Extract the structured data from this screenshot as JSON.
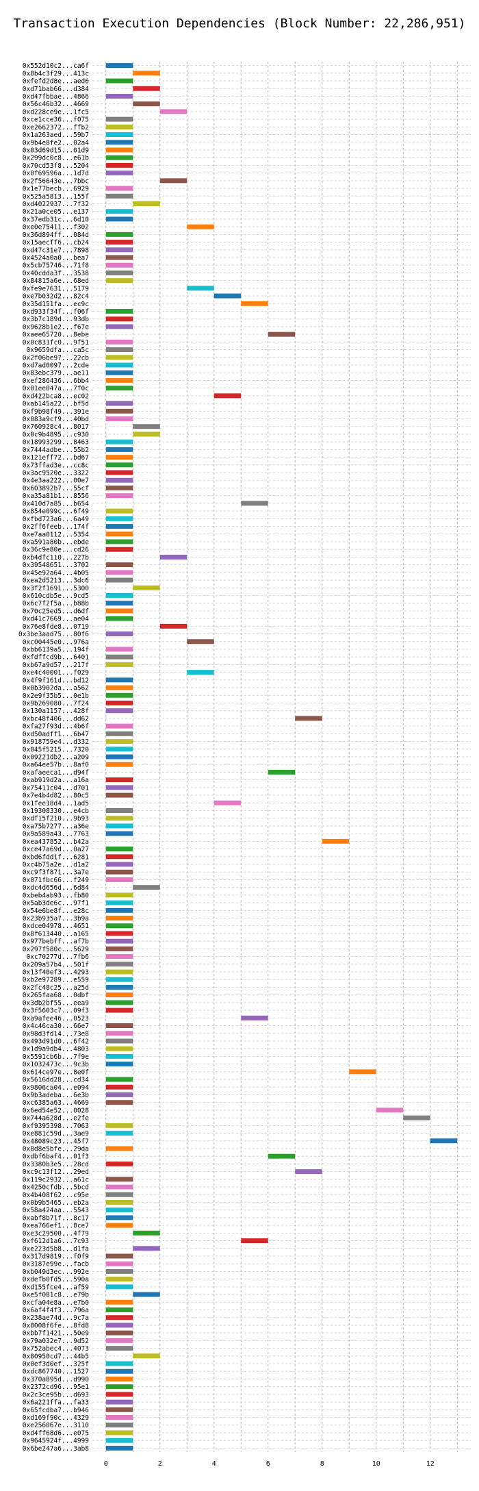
{
  "chart_data": {
    "type": "bar",
    "orientation": "horizontal-gantt",
    "title": "Transaction Execution Dependencies (Block Number: 22,286,951)",
    "xlabel": "",
    "ylabel": "",
    "xlim": [
      -0.5,
      13.5
    ],
    "xticks": [
      0,
      2,
      4,
      6,
      8,
      10,
      12
    ],
    "grid": true,
    "legend": "none",
    "colors": [
      "#1f77b4",
      "#ff7f0e",
      "#2ca02c",
      "#d62728",
      "#9467bd",
      "#8c564b",
      "#e377c2",
      "#7f7f7f",
      "#bcbd22",
      "#17becf"
    ],
    "transactions": [
      {
        "label": "0x552d10c2...ca6f",
        "start": 0
      },
      {
        "label": "0x8b4c3f29...413c",
        "start": 1
      },
      {
        "label": "0xfefd2d8e...aed6",
        "start": 0
      },
      {
        "label": "0xd71bab66...d384",
        "start": 1
      },
      {
        "label": "0xd47fbbae...4866",
        "start": 0
      },
      {
        "label": "0x56c46b32...4669",
        "start": 1
      },
      {
        "label": "0xd228ce9e...1fc5",
        "start": 2
      },
      {
        "label": "0xce1cce36...f075",
        "start": 0
      },
      {
        "label": "0xe2662372...ffb2",
        "start": 0
      },
      {
        "label": "0x1a263aed...59b7",
        "start": 0
      },
      {
        "label": "0x9b4e8fe2...02a4",
        "start": 0
      },
      {
        "label": "0x03d69d15...01d9",
        "start": 0
      },
      {
        "label": "0x299dc0c8...e61b",
        "start": 0
      },
      {
        "label": "0x70cd53f8...5204",
        "start": 0
      },
      {
        "label": "0x0f69596a...1d7d",
        "start": 0
      },
      {
        "label": "0x2f56643e...7bbc",
        "start": 2
      },
      {
        "label": "0x1e77becb...6929",
        "start": 0
      },
      {
        "label": "0x525a5813...155f",
        "start": 0
      },
      {
        "label": "0xd4022937...7f32",
        "start": 1
      },
      {
        "label": "0x21a0ce05...e137",
        "start": 0
      },
      {
        "label": "0x37edb31c...6d10",
        "start": 0
      },
      {
        "label": "0xe0e75411...f302",
        "start": 3
      },
      {
        "label": "0x36d894ff...084d",
        "start": 0
      },
      {
        "label": "0x15aecff6...cb24",
        "start": 0
      },
      {
        "label": "0xd47c31e7...7898",
        "start": 0
      },
      {
        "label": "0x4524a0a0...bea7",
        "start": 0
      },
      {
        "label": "0x5cb75746...71f8",
        "start": 0
      },
      {
        "label": "0x40cdda3f...3538",
        "start": 0
      },
      {
        "label": "0x84815a6e...68ed",
        "start": 0
      },
      {
        "label": "0xfe9e7631...5179",
        "start": 3
      },
      {
        "label": "0xe7b032d2...82c4",
        "start": 4
      },
      {
        "label": "0x35d151fa...ec9c",
        "start": 5
      },
      {
        "label": "0xd933f34f...f06f",
        "start": 0
      },
      {
        "label": "0x3b7c189d...93db",
        "start": 0
      },
      {
        "label": "0x9628b1e2...f67e",
        "start": 0
      },
      {
        "label": "0xaee65720...8ebe",
        "start": 6
      },
      {
        "label": "0x0c831fc0...9f51",
        "start": 0
      },
      {
        "label": "0x9659dfa...ca5c",
        "start": 0
      },
      {
        "label": "0x2f06be97...22cb",
        "start": 0
      },
      {
        "label": "0xd7ad0097...2cde",
        "start": 0
      },
      {
        "label": "0x83ebc379...ae11",
        "start": 0
      },
      {
        "label": "0xef286436...6bb4",
        "start": 0
      },
      {
        "label": "0x01ee047a...7f0c",
        "start": 0
      },
      {
        "label": "0xd422bca8...ec02",
        "start": 4
      },
      {
        "label": "0xab145a22...bf5d",
        "start": 0
      },
      {
        "label": "0xf9b98f49...391e",
        "start": 0
      },
      {
        "label": "0x083a9cf9...40bd",
        "start": 0
      },
      {
        "label": "0x760928c4...8017",
        "start": 1
      },
      {
        "label": "0x0c9b4895...c930",
        "start": 1
      },
      {
        "label": "0x18993299...8463",
        "start": 0
      },
      {
        "label": "0x7444adbe...55b2",
        "start": 0
      },
      {
        "label": "0x121eff72...bd67",
        "start": 0
      },
      {
        "label": "0x73ffad3e...cc8c",
        "start": 0
      },
      {
        "label": "0x3ac9520e...3322",
        "start": 0
      },
      {
        "label": "0x4e3aa222...00e7",
        "start": 0
      },
      {
        "label": "0x603892b7...55cf",
        "start": 0
      },
      {
        "label": "0xa35a81b1...8556",
        "start": 0
      },
      {
        "label": "0x410d7a85...b654",
        "start": 5
      },
      {
        "label": "0x854e099c...6f49",
        "start": 0
      },
      {
        "label": "0xfbd723a6...6a49",
        "start": 0
      },
      {
        "label": "0x2ff6feeb...174f",
        "start": 0
      },
      {
        "label": "0xe7aa0112...5354",
        "start": 0
      },
      {
        "label": "0xa591a80b...ebde",
        "start": 0
      },
      {
        "label": "0x36c9e80e...cd26",
        "start": 0
      },
      {
        "label": "0xb4dfc110...227b",
        "start": 2
      },
      {
        "label": "0x39548651...3702",
        "start": 0
      },
      {
        "label": "0x45e92a64...4b05",
        "start": 0
      },
      {
        "label": "0xea2d5213...3dc6",
        "start": 0
      },
      {
        "label": "0x3f2f1691...5300",
        "start": 1
      },
      {
        "label": "0x610cdb5e...9cd5",
        "start": 0
      },
      {
        "label": "0x6c7f2f5a...b88b",
        "start": 0
      },
      {
        "label": "0x70c25ed5...d6df",
        "start": 0
      },
      {
        "label": "0xd41c7669...ae04",
        "start": 0
      },
      {
        "label": "0x76e8fde8...0719",
        "start": 2
      },
      {
        "label": "0x3be3aad75...80f6",
        "start": 0
      },
      {
        "label": "0xc00445e0...976a",
        "start": 3
      },
      {
        "label": "0xbb6139a5...194f",
        "start": 0
      },
      {
        "label": "0xfdffcd9b...6401",
        "start": 0
      },
      {
        "label": "0xb67a9d57...217f",
        "start": 0
      },
      {
        "label": "0xe4c40001...f029",
        "start": 3
      },
      {
        "label": "0x4f9f161d...bd12",
        "start": 0
      },
      {
        "label": "0x0b3902da...a562",
        "start": 0
      },
      {
        "label": "0x2e9f35b5...0e1b",
        "start": 0
      },
      {
        "label": "0x9b269080...7f24",
        "start": 0
      },
      {
        "label": "0x130a1157...428f",
        "start": 0
      },
      {
        "label": "0xbc48f406...dd62",
        "start": 7
      },
      {
        "label": "0xfa27f93d...4b6f",
        "start": 0
      },
      {
        "label": "0xd50adff1...6b47",
        "start": 0
      },
      {
        "label": "0x918759e4...d332",
        "start": 0
      },
      {
        "label": "0x045f5215...7320",
        "start": 0
      },
      {
        "label": "0x09221db2...a209",
        "start": 0
      },
      {
        "label": "0xa64ee57b...8af0",
        "start": 0
      },
      {
        "label": "0xafaeeca1...d94f",
        "start": 6
      },
      {
        "label": "0xab919d2a...a16a",
        "start": 0
      },
      {
        "label": "0x75411c04...d701",
        "start": 0
      },
      {
        "label": "0x7e4b4d82...80c5",
        "start": 0
      },
      {
        "label": "0x1fee18d4...1ad5",
        "start": 4
      },
      {
        "label": "0x19308330...e4cb",
        "start": 0
      },
      {
        "label": "0xdf15f210...9b93",
        "start": 0
      },
      {
        "label": "0xa75b7277...a36e",
        "start": 0
      },
      {
        "label": "0x9a589a43...7763",
        "start": 0
      },
      {
        "label": "0xea437852...b42a",
        "start": 8
      },
      {
        "label": "0xce47a69d...0a27",
        "start": 0
      },
      {
        "label": "0xbd6fdd1f...6281",
        "start": 0
      },
      {
        "label": "0xc4b75a2e...d1a2",
        "start": 0
      },
      {
        "label": "0xc9f3f871...3a7e",
        "start": 0
      },
      {
        "label": "0x071fbc66...f249",
        "start": 0
      },
      {
        "label": "0xdc4d656d...6d84",
        "start": 1
      },
      {
        "label": "0xbeb4ab93...fb80",
        "start": 0
      },
      {
        "label": "0x5ab3de6c...97f1",
        "start": 0
      },
      {
        "label": "0x54e6be8f...e28c",
        "start": 0
      },
      {
        "label": "0x23b935a7...3b9a",
        "start": 0
      },
      {
        "label": "0xdce04978...4651",
        "start": 0
      },
      {
        "label": "0x8f613440...a165",
        "start": 0
      },
      {
        "label": "0x977bebff...af7b",
        "start": 0
      },
      {
        "label": "0x297f580c...5629",
        "start": 0
      },
      {
        "label": "0xc70277d...7fb6",
        "start": 0
      },
      {
        "label": "0x209a57b4...501f",
        "start": 0
      },
      {
        "label": "0x13f40ef3...4293",
        "start": 0
      },
      {
        "label": "0xb2e97289...e559",
        "start": 0
      },
      {
        "label": "0x2fc48c25...a25d",
        "start": 0
      },
      {
        "label": "0x265faa68...0dbf",
        "start": 0
      },
      {
        "label": "0x3db2bf55...eea9",
        "start": 0
      },
      {
        "label": "0x3f5603c7...09f3",
        "start": 0
      },
      {
        "label": "0xa9afee46...0523",
        "start": 5
      },
      {
        "label": "0x4c46ca30...66e7",
        "start": 0
      },
      {
        "label": "0x98d3fd14...73e8",
        "start": 0
      },
      {
        "label": "0x493d91d0...6f42",
        "start": 0
      },
      {
        "label": "0x1d9a9db4...4803",
        "start": 0
      },
      {
        "label": "0x5591cb6b...7f9e",
        "start": 0
      },
      {
        "label": "0x1032473c...9c3b",
        "start": 0
      },
      {
        "label": "0x614ce97e...8e0f",
        "start": 9
      },
      {
        "label": "0x5616dd28...cd34",
        "start": 0
      },
      {
        "label": "0x9806ca04...e094",
        "start": 0
      },
      {
        "label": "0x9b3adeba...6e3b",
        "start": 0
      },
      {
        "label": "0xc6385a63...4669",
        "start": 0
      },
      {
        "label": "0x6ed54e52...0028",
        "start": 10
      },
      {
        "label": "0x744a628d...e2fe",
        "start": 11
      },
      {
        "label": "0xf9395398...7063",
        "start": 0
      },
      {
        "label": "0xe881c59d...3ae9",
        "start": 0
      },
      {
        "label": "0x48089c23...45f7",
        "start": 12
      },
      {
        "label": "0x8d8e5bfe...29da",
        "start": 0
      },
      {
        "label": "0xdbf6baf4...01f3",
        "start": 6
      },
      {
        "label": "0x3380b3e5...28cd",
        "start": 0
      },
      {
        "label": "0xc9c13f12...29ed",
        "start": 7
      },
      {
        "label": "0x119c2932...a61c",
        "start": 0
      },
      {
        "label": "0x4250cfdb...5bcd",
        "start": 0
      },
      {
        "label": "0x4b408f62...c95e",
        "start": 0
      },
      {
        "label": "0x0b9b5465...eb2a",
        "start": 0
      },
      {
        "label": "0x58a424aa...5543",
        "start": 0
      },
      {
        "label": "0xabf8b71f...8c17",
        "start": 0
      },
      {
        "label": "0xea766ef1...8ce7",
        "start": 0
      },
      {
        "label": "0xe3c29500...4f79",
        "start": 1
      },
      {
        "label": "0xf612d1a6...7c93",
        "start": 5
      },
      {
        "label": "0xe223d5b8...d1fa",
        "start": 1
      },
      {
        "label": "0x317d9819...f0f9",
        "start": 0
      },
      {
        "label": "0x3187e99e...facb",
        "start": 0
      },
      {
        "label": "0xb049d3ec...992e",
        "start": 0
      },
      {
        "label": "0xdefb0fd5...590a",
        "start": 0
      },
      {
        "label": "0xd155fce4...af59",
        "start": 0
      },
      {
        "label": "0xe5f081c8...e79b",
        "start": 1
      },
      {
        "label": "0xcfa04e8a...e7b0",
        "start": 0
      },
      {
        "label": "0x6af4f4f3...796a",
        "start": 0
      },
      {
        "label": "0x238ae74d...9c7a",
        "start": 0
      },
      {
        "label": "0x8008f6fe...8fd8",
        "start": 0
      },
      {
        "label": "0xbb7f1421...50e9",
        "start": 0
      },
      {
        "label": "0x79a032e7...9d52",
        "start": 0
      },
      {
        "label": "0x752abec4...4073",
        "start": 0
      },
      {
        "label": "0x80950cd7...44b5",
        "start": 1
      },
      {
        "label": "0x0ef3d0ef...325f",
        "start": 0
      },
      {
        "label": "0xdc867740...1527",
        "start": 0
      },
      {
        "label": "0x370a895d...d990",
        "start": 0
      },
      {
        "label": "0x2372cd96...95e1",
        "start": 0
      },
      {
        "label": "0x2c3ce95b...d693",
        "start": 0
      },
      {
        "label": "0x6a221ffa...fa33",
        "start": 0
      },
      {
        "label": "0x65fcdba7...b946",
        "start": 0
      },
      {
        "label": "0xd169f90c...4329",
        "start": 0
      },
      {
        "label": "0xe256067e...3110",
        "start": 0
      },
      {
        "label": "0xd4ff68d6...e075",
        "start": 0
      },
      {
        "label": "0x9645924f...4999",
        "start": 0
      },
      {
        "label": "0x6be247a6...3ab8",
        "start": 0
      }
    ]
  }
}
